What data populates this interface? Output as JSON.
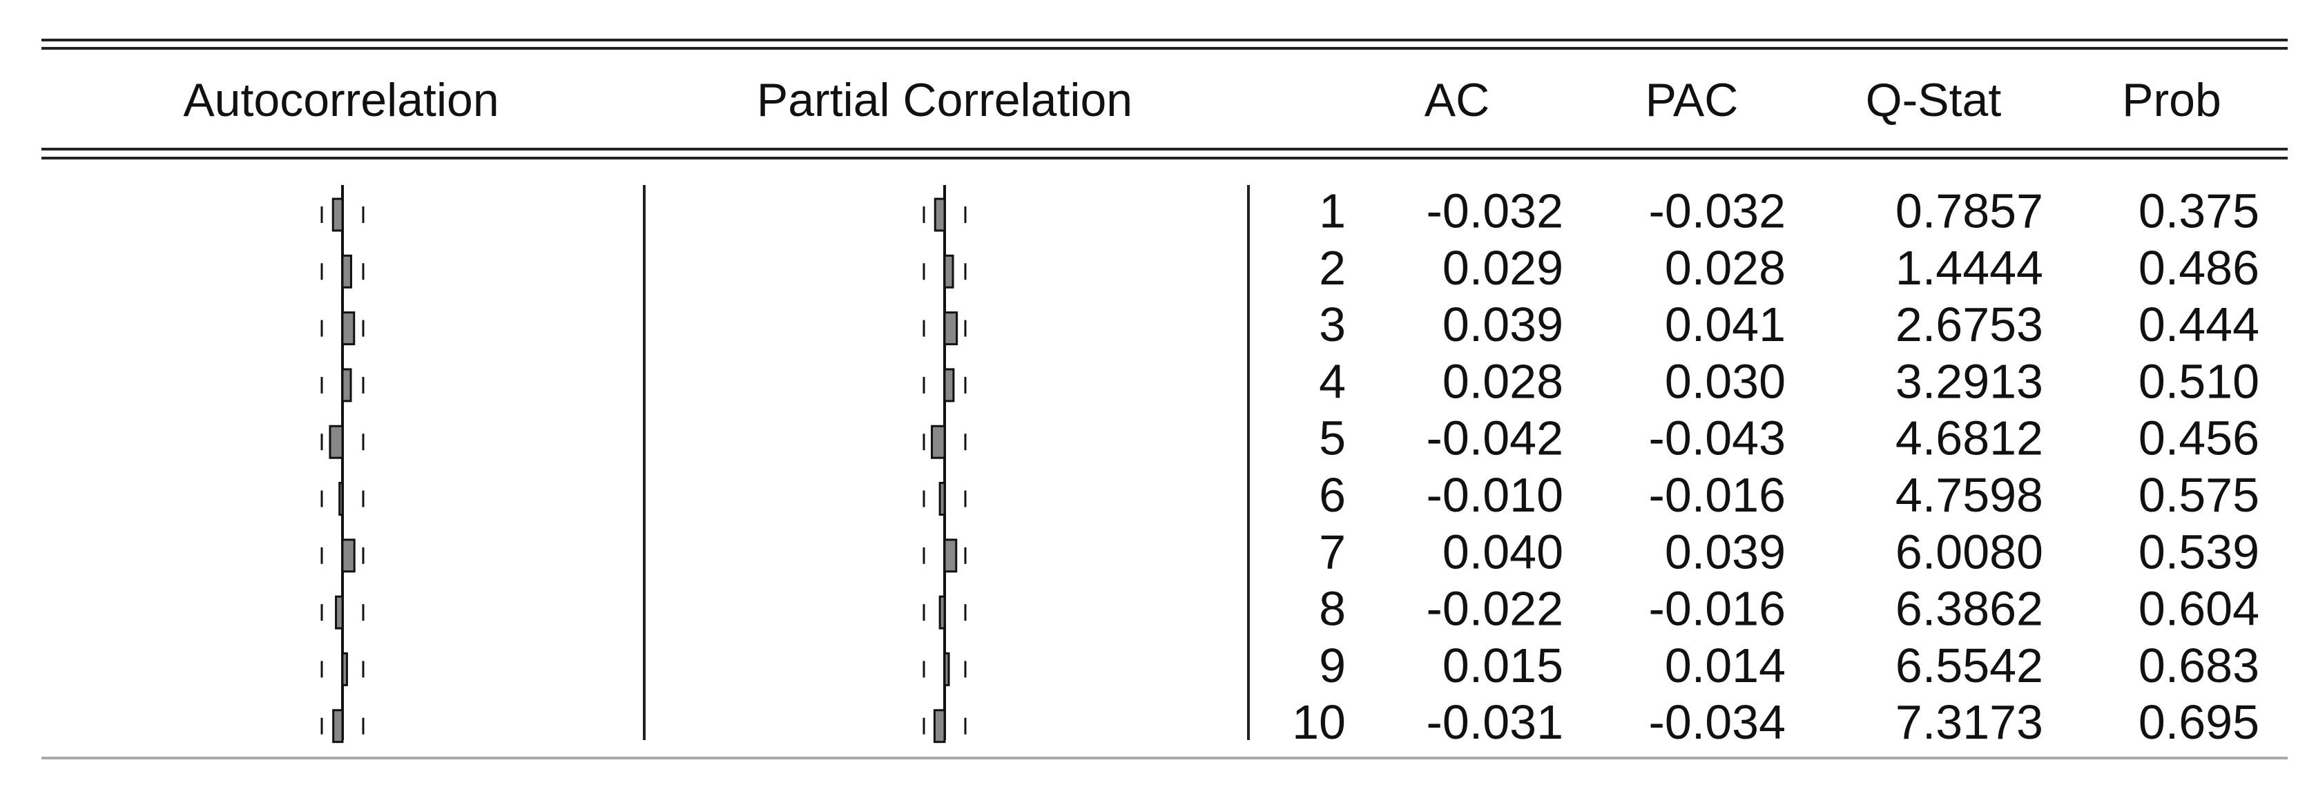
{
  "table": {
    "headers": [
      "Autocorrelation",
      "Partial Correlation",
      "AC",
      "PAC",
      "Q-Stat",
      "Prob"
    ],
    "rows": [
      {
        "lag": "1",
        "ac": "-0.032",
        "pac": "-0.032",
        "q": "0.7857",
        "prob": "0.375"
      },
      {
        "lag": "2",
        "ac": "0.029",
        "pac": "0.028",
        "q": "1.4444",
        "prob": "0.486"
      },
      {
        "lag": "3",
        "ac": "0.039",
        "pac": "0.041",
        "q": "2.6753",
        "prob": "0.444"
      },
      {
        "lag": "4",
        "ac": "0.028",
        "pac": "0.030",
        "q": "3.2913",
        "prob": "0.510"
      },
      {
        "lag": "5",
        "ac": "-0.042",
        "pac": "-0.043",
        "q": "4.6812",
        "prob": "0.456"
      },
      {
        "lag": "6",
        "ac": "-0.010",
        "pac": "-0.016",
        "q": "4.7598",
        "prob": "0.575"
      },
      {
        "lag": "7",
        "ac": "0.040",
        "pac": "0.039",
        "q": "6.0080",
        "prob": "0.539"
      },
      {
        "lag": "8",
        "ac": "-0.022",
        "pac": "-0.016",
        "q": "6.3862",
        "prob": "0.604"
      },
      {
        "lag": "9",
        "ac": "0.015",
        "pac": "0.014",
        "q": "6.5542",
        "prob": "0.683"
      },
      {
        "lag": "10",
        "ac": "-0.031",
        "pac": "-0.034",
        "q": "7.3173",
        "prob": "0.695"
      }
    ]
  }
}
